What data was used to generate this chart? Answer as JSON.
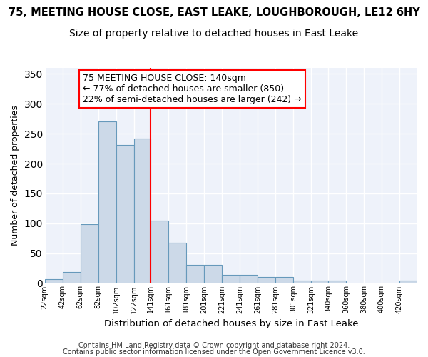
{
  "title1": "75, MEETING HOUSE CLOSE, EAST LEAKE, LOUGHBOROUGH, LE12 6HY",
  "title2": "Size of property relative to detached houses in East Leake",
  "xlabel": "Distribution of detached houses by size in East Leake",
  "ylabel": "Number of detached properties",
  "footer1": "Contains HM Land Registry data © Crown copyright and database right 2024.",
  "footer2": "Contains public sector information licensed under the Open Government Licence v3.0.",
  "annotation_line1": "75 MEETING HOUSE CLOSE: 140sqm",
  "annotation_line2": "← 77% of detached houses are smaller (850)",
  "annotation_line3": "22% of semi-detached houses are larger (242) →",
  "bar_edges": [
    22,
    42,
    62,
    82,
    102,
    122,
    141,
    161,
    181,
    201,
    221,
    241,
    261,
    281,
    301,
    321,
    340,
    360,
    380,
    400,
    420
  ],
  "bar_heights": [
    7,
    19,
    99,
    270,
    231,
    242,
    105,
    68,
    30,
    30,
    14,
    14,
    10,
    10,
    4,
    4,
    4,
    0,
    0,
    0,
    4
  ],
  "bar_color": "#ccd9e8",
  "bar_edge_color": "#6699bb",
  "vline_x": 141,
  "vline_color": "red",
  "background_color": "#eef2fa",
  "grid_color": "#ffffff",
  "ylim": [
    0,
    360
  ],
  "yticks": [
    0,
    50,
    100,
    150,
    200,
    250,
    300,
    350
  ],
  "title1_fontsize": 10.5,
  "title2_fontsize": 10,
  "xlabel_fontsize": 9.5,
  "ylabel_fontsize": 9,
  "annotation_fontsize": 9,
  "footer_fontsize": 7
}
